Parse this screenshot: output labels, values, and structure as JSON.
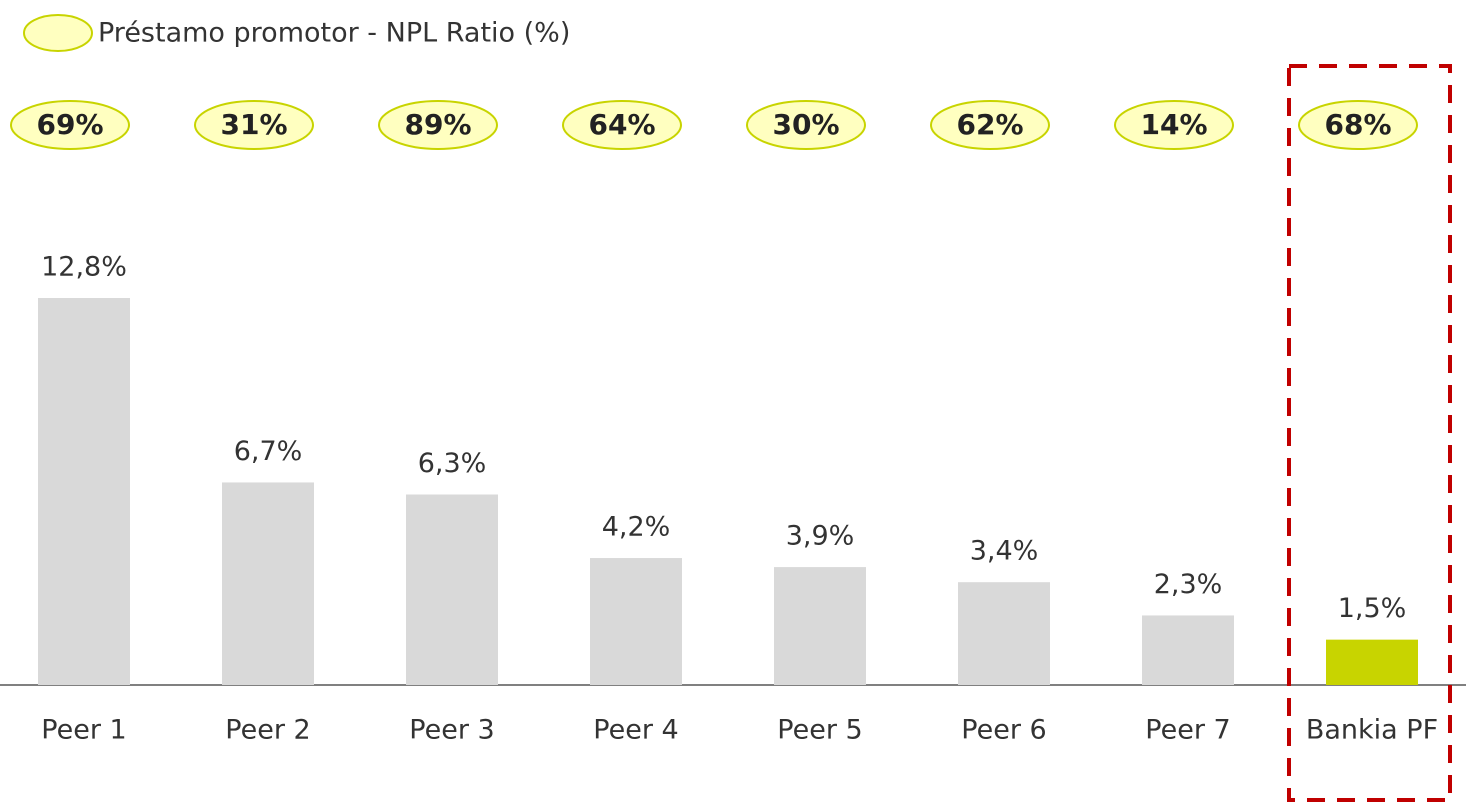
{
  "chart_data": {
    "type": "bar",
    "categories": [
      "Peer 1",
      "Peer 2",
      "Peer 3",
      "Peer 4",
      "Peer 5",
      "Peer 6",
      "Peer 7",
      "Bankia PF"
    ],
    "values": [
      12.8,
      6.7,
      6.3,
      4.2,
      3.9,
      3.4,
      2.3,
      1.5
    ],
    "value_labels": [
      "12,8%",
      "6,7%",
      "6,3%",
      "4,2%",
      "3,9%",
      "3,4%",
      "2,3%",
      "1,5%"
    ],
    "colors": [
      "#d9d9d9",
      "#d9d9d9",
      "#d9d9d9",
      "#d9d9d9",
      "#d9d9d9",
      "#d9d9d9",
      "#d9d9d9",
      "#c8d400"
    ],
    "npl_ratio": {
      "name": "Préstamo promotor - NPL Ratio (%)",
      "values": [
        69,
        31,
        89,
        64,
        30,
        62,
        14,
        68
      ],
      "value_labels": [
        "69%",
        "31%",
        "89%",
        "64%",
        "30%",
        "62%",
        "14%",
        "68%"
      ]
    }
  }
}
